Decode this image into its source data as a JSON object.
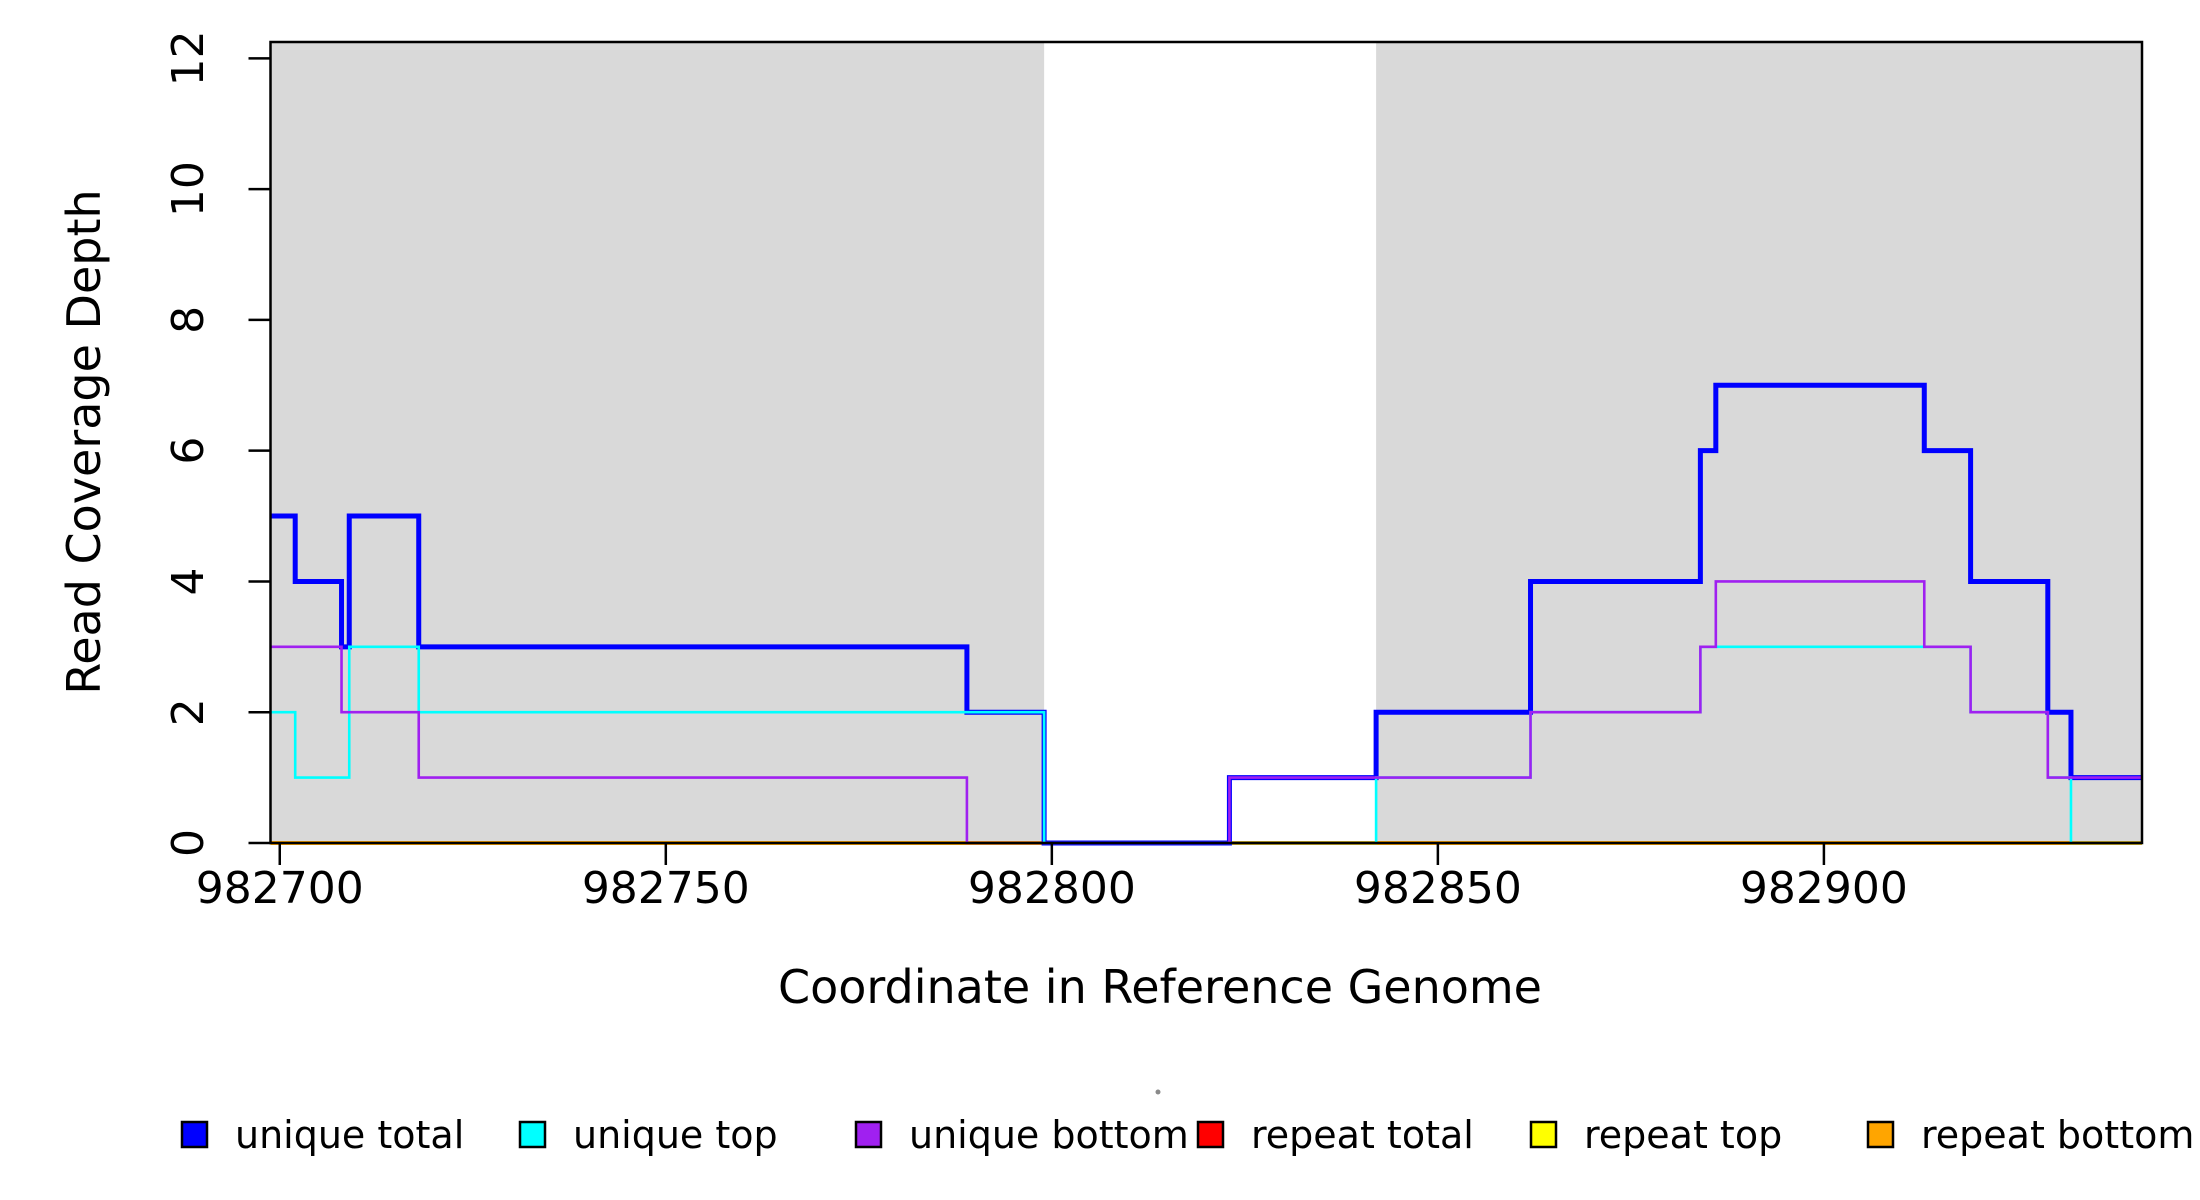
{
  "figure": {
    "background": "#FFFFFF",
    "stray_mark_color": "#8a8a8a"
  },
  "chart_data": {
    "type": "line",
    "subtype": "step-post",
    "title": "",
    "xlabel": "Coordinate in Reference Genome",
    "ylabel": "Read Coverage Depth",
    "xlim": [
      982698.8,
      982941.2
    ],
    "ylim": [
      0,
      12.25
    ],
    "x_ticks": [
      982700,
      982750,
      982800,
      982850,
      982900
    ],
    "x_tick_labels": [
      "982700",
      "982750",
      "982800",
      "982850",
      "982900"
    ],
    "y_ticks": [
      0,
      2,
      4,
      6,
      8,
      10,
      12
    ],
    "y_tick_labels": [
      "0",
      "2",
      "4",
      "6",
      "8",
      "10",
      "12"
    ],
    "grid": false,
    "legend_position": "bottom",
    "plot_border_color": "#000000",
    "shaded_regions": [
      {
        "x0": 982698.8,
        "x1": 982799,
        "color": "#D9D9D9"
      },
      {
        "x0": 982842,
        "x1": 982941.2,
        "color": "#D9D9D9"
      }
    ],
    "x_start": 982698.8,
    "x_end": 982941.2,
    "draw_order": [
      "repeat total",
      "repeat top",
      "repeat bottom",
      "unique total",
      "unique top",
      "unique bottom"
    ],
    "series": [
      {
        "name": "unique total",
        "color": "#0000FF",
        "line_width": 5,
        "start_value": 5,
        "steps": [
          [
            982702,
            4
          ],
          [
            982708,
            3
          ],
          [
            982709,
            5
          ],
          [
            982718,
            3
          ],
          [
            982789,
            2
          ],
          [
            982799,
            0
          ],
          [
            982823,
            1
          ],
          [
            982842,
            2
          ],
          [
            982862,
            4
          ],
          [
            982884,
            6
          ],
          [
            982886,
            7
          ],
          [
            982913,
            6
          ],
          [
            982919,
            4
          ],
          [
            982929,
            2
          ],
          [
            982932,
            1
          ]
        ]
      },
      {
        "name": "unique top",
        "color": "#00FFFF",
        "line_width": 2.6,
        "start_value": 2,
        "steps": [
          [
            982702,
            1
          ],
          [
            982709,
            3
          ],
          [
            982718,
            2
          ],
          [
            982799,
            0
          ],
          [
            982842,
            1
          ],
          [
            982862,
            2
          ],
          [
            982884,
            3
          ],
          [
            982919,
            2
          ],
          [
            982929,
            1
          ],
          [
            982932,
            0
          ]
        ]
      },
      {
        "name": "unique bottom",
        "color": "#A020F0",
        "line_width": 2.6,
        "start_value": 3,
        "steps": [
          [
            982708,
            2
          ],
          [
            982718,
            1
          ],
          [
            982789,
            0
          ],
          [
            982823,
            1
          ],
          [
            982862,
            2
          ],
          [
            982884,
            3
          ],
          [
            982886,
            4
          ],
          [
            982913,
            3
          ],
          [
            982919,
            2
          ],
          [
            982929,
            1
          ]
        ]
      },
      {
        "name": "repeat total",
        "color": "#FF0000",
        "line_width": 2.6,
        "start_value": 0,
        "steps": []
      },
      {
        "name": "repeat top",
        "color": "#FFFF00",
        "line_width": 2.6,
        "start_value": 0,
        "steps": []
      },
      {
        "name": "repeat bottom",
        "color": "#FFA500",
        "line_width": 4,
        "start_value": 0,
        "steps": []
      }
    ]
  },
  "legend": {
    "items": [
      {
        "label": "unique total",
        "color": "#0000FF"
      },
      {
        "label": "unique top",
        "color": "#00FFFF"
      },
      {
        "label": "unique bottom",
        "color": "#A020F0"
      },
      {
        "label": "repeat total",
        "color": "#FF0000"
      },
      {
        "label": "repeat top",
        "color": "#FFFF00"
      },
      {
        "label": "repeat bottom",
        "color": "#FFA500"
      }
    ]
  }
}
